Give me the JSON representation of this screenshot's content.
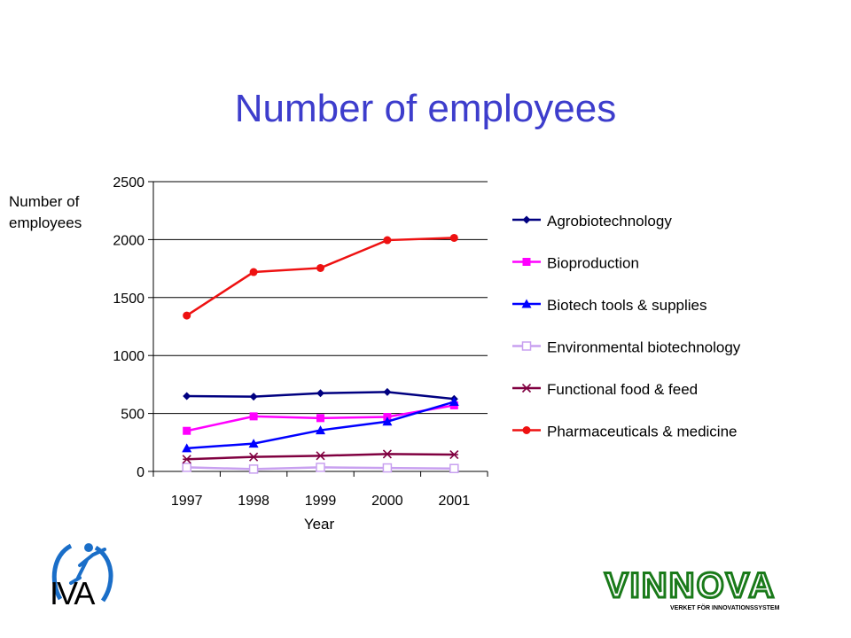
{
  "page": {
    "title": "Number of employees"
  },
  "chart_data": {
    "type": "line",
    "title": "Number of employees",
    "xlabel": "Year",
    "ylabel": "Number of employees",
    "categories": [
      "1997",
      "1998",
      "1999",
      "2000",
      "2001"
    ],
    "ylim": [
      0,
      2500
    ],
    "yticks": [
      "0",
      "500",
      "1000",
      "1500",
      "2000",
      "2500"
    ],
    "grid": true,
    "legend_position": "right",
    "series": [
      {
        "name": "Agrobiotechnology",
        "color": "#000080",
        "marker": "diamond",
        "values": [
          650,
          645,
          675,
          685,
          625
        ]
      },
      {
        "name": "Bioproduction",
        "color": "#ff00ff",
        "marker": "square",
        "values": [
          350,
          475,
          460,
          470,
          570
        ]
      },
      {
        "name": "Biotech tools & supplies",
        "color": "#0000ff",
        "marker": "triangle",
        "values": [
          200,
          240,
          355,
          430,
          600
        ]
      },
      {
        "name": "Environmental biotechnology",
        "color": "#c8a0f0",
        "marker": "open-square",
        "values": [
          35,
          20,
          35,
          30,
          25
        ]
      },
      {
        "name": "Functional food & feed",
        "color": "#800040",
        "marker": "asterisk",
        "values": [
          105,
          125,
          135,
          150,
          145
        ]
      },
      {
        "name": "Pharmaceuticals & medicine",
        "color": "#ee1111",
        "marker": "circle",
        "values": [
          1345,
          1720,
          1755,
          1995,
          2015
        ]
      }
    ]
  },
  "logos": {
    "left_text": "IVA",
    "right_text": "VINNOVA",
    "right_tagline": "VERKET FÖR INNOVATIONSSYSTEM"
  }
}
